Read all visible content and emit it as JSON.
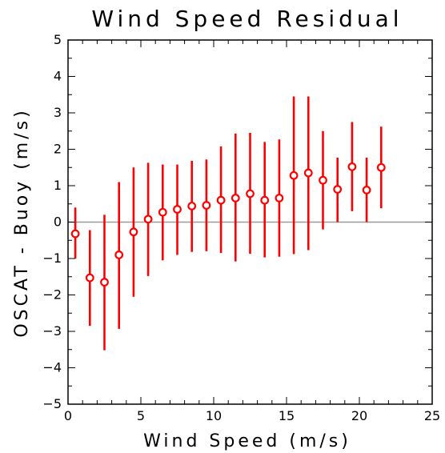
{
  "chart_data": {
    "type": "scatter",
    "title": "Wind Speed Residual",
    "xlabel": "Wind Speed (m/s)",
    "ylabel": "OSCAT - Buoy (m/s)",
    "xlim": [
      0,
      25
    ],
    "ylim": [
      -5,
      5
    ],
    "xticks": [
      0,
      5,
      10,
      15,
      20,
      25
    ],
    "yticks": [
      -5,
      -4,
      -3,
      -2,
      -1,
      0,
      1,
      2,
      3,
      4,
      5
    ],
    "reference_line": 0,
    "grid": false,
    "series": [
      {
        "marker": "open-circle",
        "error_bars": true,
        "points": [
          {
            "x": 0.5,
            "y": -0.32,
            "ylow": -1.0,
            "yhigh": 0.4
          },
          {
            "x": 1.5,
            "y": -1.53,
            "ylow": -2.85,
            "yhigh": -0.22
          },
          {
            "x": 2.5,
            "y": -1.65,
            "ylow": -3.52,
            "yhigh": 0.2
          },
          {
            "x": 3.5,
            "y": -0.9,
            "ylow": -2.93,
            "yhigh": 1.1
          },
          {
            "x": 4.5,
            "y": -0.27,
            "ylow": -2.05,
            "yhigh": 1.5
          },
          {
            "x": 5.5,
            "y": 0.08,
            "ylow": -1.48,
            "yhigh": 1.63
          },
          {
            "x": 6.5,
            "y": 0.27,
            "ylow": -1.05,
            "yhigh": 1.58
          },
          {
            "x": 7.5,
            "y": 0.35,
            "ylow": -0.9,
            "yhigh": 1.58
          },
          {
            "x": 8.5,
            "y": 0.44,
            "ylow": -0.82,
            "yhigh": 1.68
          },
          {
            "x": 9.5,
            "y": 0.46,
            "ylow": -0.8,
            "yhigh": 1.72
          },
          {
            "x": 10.5,
            "y": 0.6,
            "ylow": -0.85,
            "yhigh": 2.08
          },
          {
            "x": 11.5,
            "y": 0.66,
            "ylow": -1.08,
            "yhigh": 2.43
          },
          {
            "x": 12.5,
            "y": 0.78,
            "ylow": -0.87,
            "yhigh": 2.45
          },
          {
            "x": 13.5,
            "y": 0.6,
            "ylow": -0.97,
            "yhigh": 2.2
          },
          {
            "x": 14.5,
            "y": 0.66,
            "ylow": -0.95,
            "yhigh": 2.27
          },
          {
            "x": 15.5,
            "y": 1.28,
            "ylow": -0.88,
            "yhigh": 3.45
          },
          {
            "x": 16.5,
            "y": 1.35,
            "ylow": -0.77,
            "yhigh": 3.45
          },
          {
            "x": 17.5,
            "y": 1.15,
            "ylow": -0.2,
            "yhigh": 2.5
          },
          {
            "x": 18.5,
            "y": 0.9,
            "ylow": 0.0,
            "yhigh": 1.77
          },
          {
            "x": 19.5,
            "y": 1.52,
            "ylow": 0.3,
            "yhigh": 2.75
          },
          {
            "x": 20.5,
            "y": 0.88,
            "ylow": 0.0,
            "yhigh": 1.77
          },
          {
            "x": 21.5,
            "y": 1.5,
            "ylow": 0.38,
            "yhigh": 2.62
          }
        ]
      }
    ],
    "colors": {
      "points": "#ff0000",
      "axes": "#000000",
      "reference_line": "#999999"
    }
  }
}
